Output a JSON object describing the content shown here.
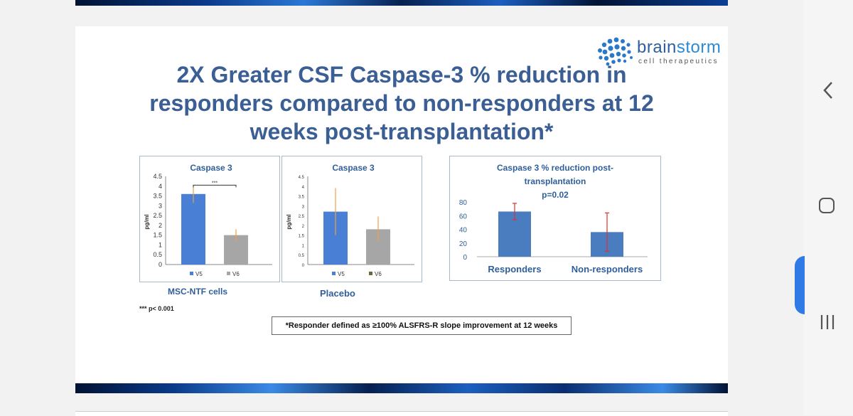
{
  "slide": {
    "title_lines": [
      "2X Greater CSF Caspase-3 % reduction in",
      "responders compared to non-responders at 12",
      "weeks post-transplantation*"
    ],
    "logo": {
      "word_a": "brain",
      "word_b": "storm",
      "sub": "cell therapeutics"
    },
    "msc_caption": "MSC-NTF cells",
    "placebo_caption": "Placebo",
    "significance_note": "*** p< 0.001",
    "responder_definition": "*Responder defined as ≥100% ALSFRS-R slope improvement at 12 weeks"
  },
  "colors": {
    "title": "#3b5f94",
    "v5_bar": "#4a7fd6",
    "v6_bar": "#a6a6a6",
    "reduction_bar": "#4a7dc0",
    "error_bar_orange": "#f0a040",
    "error_bar_red": "#e03030"
  },
  "chart_data": [
    {
      "type": "bar",
      "title": "Caspase 3",
      "ylabel": "pg/ml",
      "ylim": [
        0,
        4.5
      ],
      "yticks": [
        "0",
        "0.5",
        "1",
        "1.5",
        "2",
        "2.5",
        "3",
        "3.5",
        "4",
        "4.5"
      ],
      "categories": [
        "V5",
        "V6"
      ],
      "values": [
        3.6,
        1.5
      ],
      "errors": [
        0.45,
        0.3
      ],
      "legend": [
        "V5",
        "V6"
      ],
      "annotation": "***"
    },
    {
      "type": "bar",
      "title": "Caspase 3",
      "ylabel": "pg/ml",
      "ylim": [
        0,
        4.5
      ],
      "yticks": [
        "0",
        "0.5",
        "1",
        "1.5",
        "2",
        "2.5",
        "3",
        "3.5",
        "4",
        "4.5"
      ],
      "categories": [
        "V5",
        "V6"
      ],
      "values": [
        2.7,
        1.8
      ],
      "errors": [
        1.2,
        0.65
      ],
      "legend": [
        "V5",
        "V6"
      ]
    },
    {
      "type": "bar",
      "title_lines": [
        "Caspase 3 % reduction post-",
        "transplantation"
      ],
      "subtitle": "p=0.02",
      "ylim": [
        0,
        80
      ],
      "yticks": [
        "0",
        "20",
        "40",
        "60",
        "80"
      ],
      "categories": [
        "Responders",
        "Non-responders"
      ],
      "values": [
        66,
        36
      ],
      "errors": [
        12,
        28
      ]
    }
  ]
}
